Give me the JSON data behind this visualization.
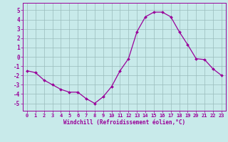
{
  "x": [
    0,
    1,
    2,
    3,
    4,
    5,
    6,
    7,
    8,
    9,
    10,
    11,
    12,
    13,
    14,
    15,
    16,
    17,
    18,
    19,
    20,
    21,
    22,
    23
  ],
  "y": [
    -1.5,
    -1.7,
    -2.5,
    -3.0,
    -3.5,
    -3.8,
    -3.8,
    -4.5,
    -5.0,
    -4.3,
    -3.2,
    -1.5,
    -0.2,
    2.7,
    4.3,
    4.8,
    4.8,
    4.3,
    2.7,
    1.3,
    -0.2,
    -0.3,
    -1.3,
    -2.0
  ],
  "line_color": "#990099",
  "marker": "D",
  "marker_size": 2.0,
  "bg_color": "#c8eaea",
  "grid_color": "#99bbbb",
  "xlabel": "Windchill (Refroidissement éolien,°C)",
  "xlabel_color": "#990099",
  "tick_color": "#990099",
  "ylim": [
    -5.8,
    5.8
  ],
  "xlim": [
    -0.5,
    23.5
  ],
  "yticks": [
    -5,
    -4,
    -3,
    -2,
    -1,
    0,
    1,
    2,
    3,
    4,
    5
  ],
  "xticks": [
    0,
    1,
    2,
    3,
    4,
    5,
    6,
    7,
    8,
    9,
    10,
    11,
    12,
    13,
    14,
    15,
    16,
    17,
    18,
    19,
    20,
    21,
    22,
    23
  ]
}
